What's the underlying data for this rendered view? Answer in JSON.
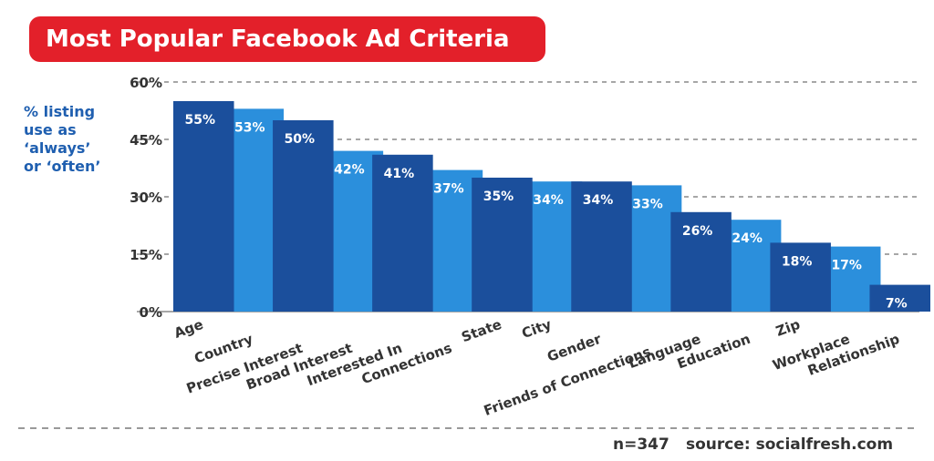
{
  "title": "Most Popular Facebook Ad Criteria",
  "ylabel_lines": [
    "% listing",
    "use as",
    "‘always’",
    "or ‘often’"
  ],
  "footer": {
    "n": "n=347",
    "source": "source: socialfresh.com"
  },
  "colors": {
    "banner": "#e3202a",
    "dark_bar": "#1b4f9c",
    "light_bar": "#2b8fdc",
    "ylabel": "#1f5fb0"
  },
  "chart_data": {
    "type": "bar",
    "title": "Most Popular Facebook Ad Criteria",
    "ylabel": "% listing use as ‘always’ or ‘often’",
    "xlabel": "",
    "ylim": [
      0,
      60
    ],
    "yticks": [
      0,
      15,
      30,
      45,
      60
    ],
    "ytick_labels": [
      "0%",
      "15%",
      "30%",
      "45%",
      "60%"
    ],
    "grid": true,
    "categories": [
      "Age",
      "Country",
      "Precise Interest",
      "Broad Interest",
      "Interested In",
      "Connections",
      "State",
      "City",
      "Gender",
      "Friends of Connections",
      "Language",
      "Education",
      "Zip",
      "Workplace",
      "Relationship"
    ],
    "values": [
      55,
      53,
      50,
      42,
      41,
      37,
      35,
      34,
      34,
      33,
      26,
      24,
      18,
      17,
      7
    ],
    "value_labels": [
      "55%",
      "53%",
      "50%",
      "42%",
      "41%",
      "37%",
      "35%",
      "34%",
      "34%",
      "33%",
      "26%",
      "24%",
      "18%",
      "17%",
      "7%"
    ]
  }
}
